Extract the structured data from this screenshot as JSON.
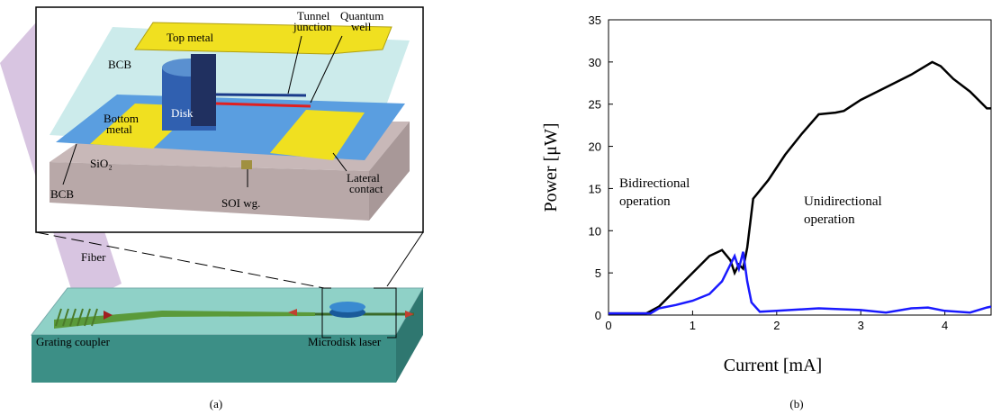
{
  "diagram": {
    "labels": {
      "top_metal": "Top metal",
      "tunnel_junction": [
        "Tunnel",
        "junction"
      ],
      "quantum_well": [
        "Quantum",
        "well"
      ],
      "bcb_top": "BCB",
      "disk": "Disk",
      "bottom_metal": [
        "Bottom",
        "metal"
      ],
      "sio2": "SiO₂",
      "bcb_bottom": "BCB",
      "soi_wg": "SOI wg.",
      "lateral_contact": [
        "Lateral",
        "contact"
      ],
      "fiber": "Fiber",
      "grating_coupler": "Grating coupler",
      "microdisk_laser": "Microdisk laser"
    }
  },
  "captions": [
    "(a)",
    "(b)"
  ],
  "chart_data": {
    "type": "line",
    "xlabel": "Current [mA]",
    "ylabel": "Power [μW]",
    "xlim": [
      0,
      4.55
    ],
    "ylim": [
      0,
      35
    ],
    "xticks": [
      0,
      1,
      2,
      3,
      4
    ],
    "yticks": [
      0,
      5,
      10,
      15,
      20,
      25,
      30,
      35
    ],
    "annotations": [
      [
        "Bidirectional",
        "operation"
      ],
      [
        "Unidirectional",
        "operation"
      ]
    ],
    "series": [
      {
        "color": "#000000",
        "x": [
          0,
          0.45,
          0.6,
          0.8,
          1.0,
          1.2,
          1.35,
          1.45,
          1.5,
          1.55,
          1.6,
          1.65,
          1.72,
          1.9,
          2.1,
          2.3,
          2.5,
          2.7,
          2.8,
          3.0,
          3.3,
          3.6,
          3.85,
          3.95,
          4.1,
          4.3,
          4.5,
          4.55
        ],
        "values": [
          0.2,
          0.2,
          1,
          3,
          5,
          7,
          7.7,
          6.5,
          5,
          6,
          5.5,
          8,
          13.8,
          16,
          19,
          21.5,
          23.8,
          24,
          24.2,
          25.5,
          27,
          28.5,
          30,
          29.5,
          28,
          26.5,
          24.5,
          24.5
        ]
      },
      {
        "color": "#1a1aff",
        "x": [
          0,
          0.5,
          0.6,
          0.8,
          1.0,
          1.2,
          1.35,
          1.45,
          1.5,
          1.55,
          1.6,
          1.65,
          1.7,
          1.8,
          2.0,
          2.5,
          3.0,
          3.3,
          3.6,
          3.8,
          4.0,
          4.3,
          4.5,
          4.55
        ],
        "values": [
          0.2,
          0.2,
          0.8,
          1.2,
          1.7,
          2.5,
          4,
          6,
          7,
          5.5,
          7.5,
          4,
          1.5,
          0.4,
          0.5,
          0.8,
          0.6,
          0.3,
          0.8,
          0.9,
          0.5,
          0.3,
          0.9,
          1.0
        ]
      }
    ]
  }
}
